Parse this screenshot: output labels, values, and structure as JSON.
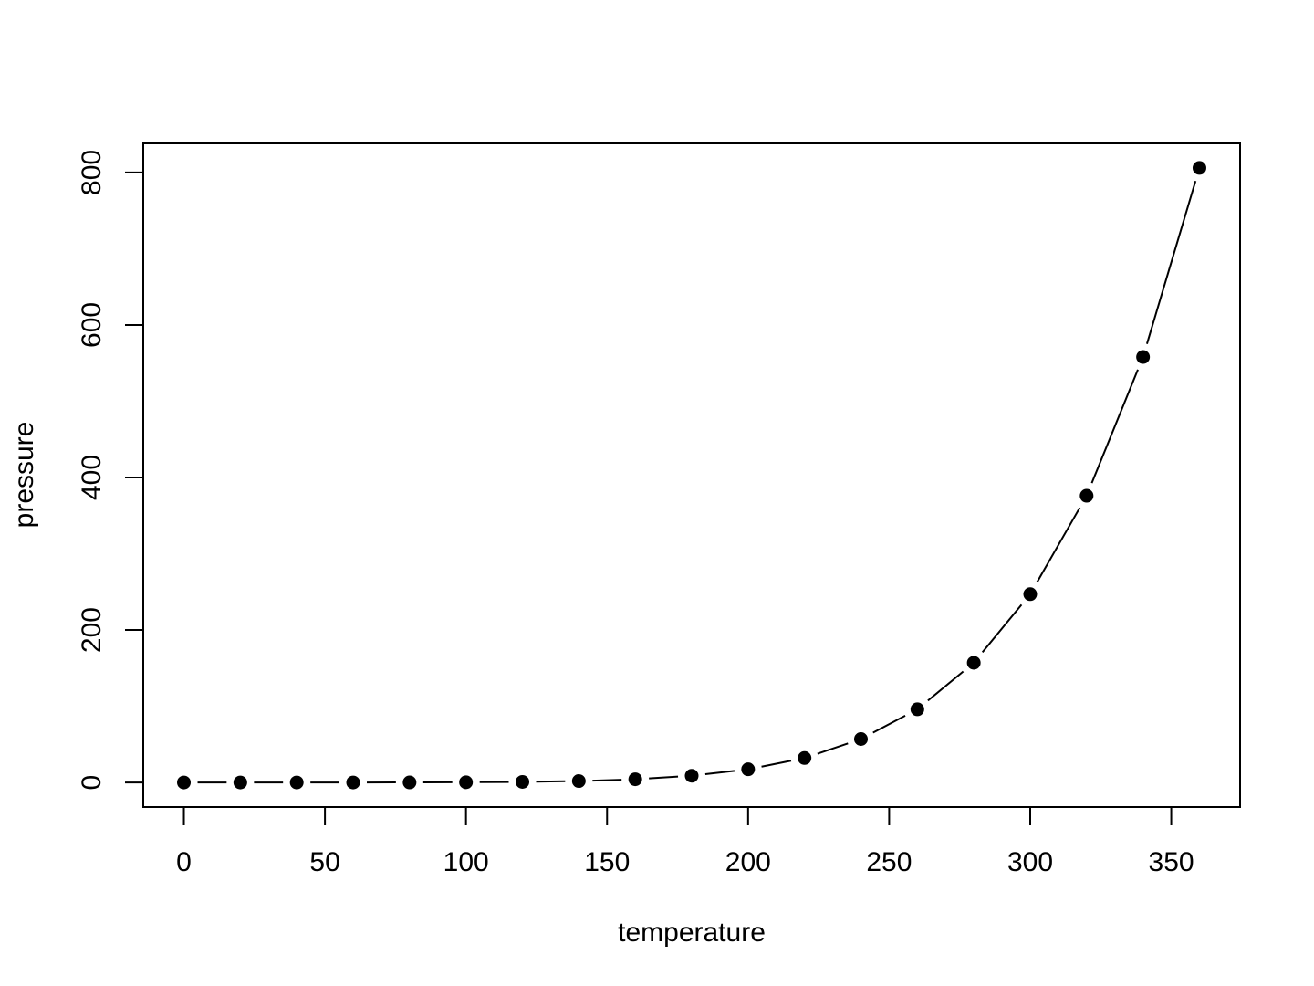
{
  "chart_data": {
    "type": "line",
    "title": "",
    "xlabel": "temperature",
    "ylabel": "pressure",
    "xlim": [
      -14.4,
      374.4
    ],
    "ylim": [
      -32.2,
      838.2
    ],
    "x_ticks": [
      0,
      50,
      100,
      150,
      200,
      250,
      300,
      350
    ],
    "y_ticks": [
      0,
      200,
      400,
      600,
      800
    ],
    "grid": false,
    "legend": "none",
    "line_style": "solid with point markers",
    "colors": {
      "line": "#000000",
      "points": "#000000",
      "frame": "#000000"
    },
    "series": [
      {
        "x": [
          0,
          20,
          40,
          60,
          80,
          100,
          120,
          140,
          160,
          180,
          200,
          220,
          240,
          260,
          280,
          300,
          320,
          340,
          360
        ],
        "y": [
          0.0002,
          0.0012,
          0.006,
          0.03,
          0.09,
          0.27,
          0.75,
          1.85,
          4.2,
          8.8,
          17.3,
          32.1,
          57,
          96,
          157,
          247,
          376,
          558,
          806
        ]
      }
    ]
  }
}
